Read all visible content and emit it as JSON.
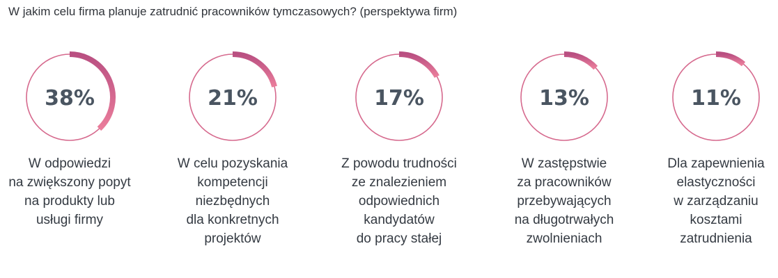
{
  "chart_data": {
    "type": "donut-progress",
    "title": "W jakim celu firma planuje zatrudnić pracowników tymczasowych? (perspektywa firm)",
    "colors": {
      "ring_track": "#d66a8e",
      "progress_start": "#b94f81",
      "progress_end": "#ea7d9b",
      "value_text": "#4a5561"
    },
    "items": [
      {
        "value": 38,
        "label": "38%",
        "caption": [
          "W odpowiedzi",
          "na zwiększony popyt",
          "na produkty lub",
          "usługi firmy"
        ]
      },
      {
        "value": 21,
        "label": "21%",
        "caption": [
          "W celu pozyskania",
          "kompetencji",
          "niezbędnych",
          "dla konkretnych",
          "projektów"
        ]
      },
      {
        "value": 17,
        "label": "17%",
        "caption": [
          "Z powodu trudności",
          "ze znalezieniem",
          "odpowiednich",
          "kandydatów",
          "do pracy stałej"
        ]
      },
      {
        "value": 13,
        "label": "13%",
        "caption": [
          "W zastępstwie",
          "za pracowników",
          "przebywających",
          "na długotrwałych",
          "zwolnieniach"
        ]
      },
      {
        "value": 11,
        "label": "11%",
        "caption": [
          "Dla zapewnienia",
          "elastyczności",
          "w zarządzaniu",
          "kosztami",
          "zatrudnienia"
        ]
      }
    ]
  }
}
